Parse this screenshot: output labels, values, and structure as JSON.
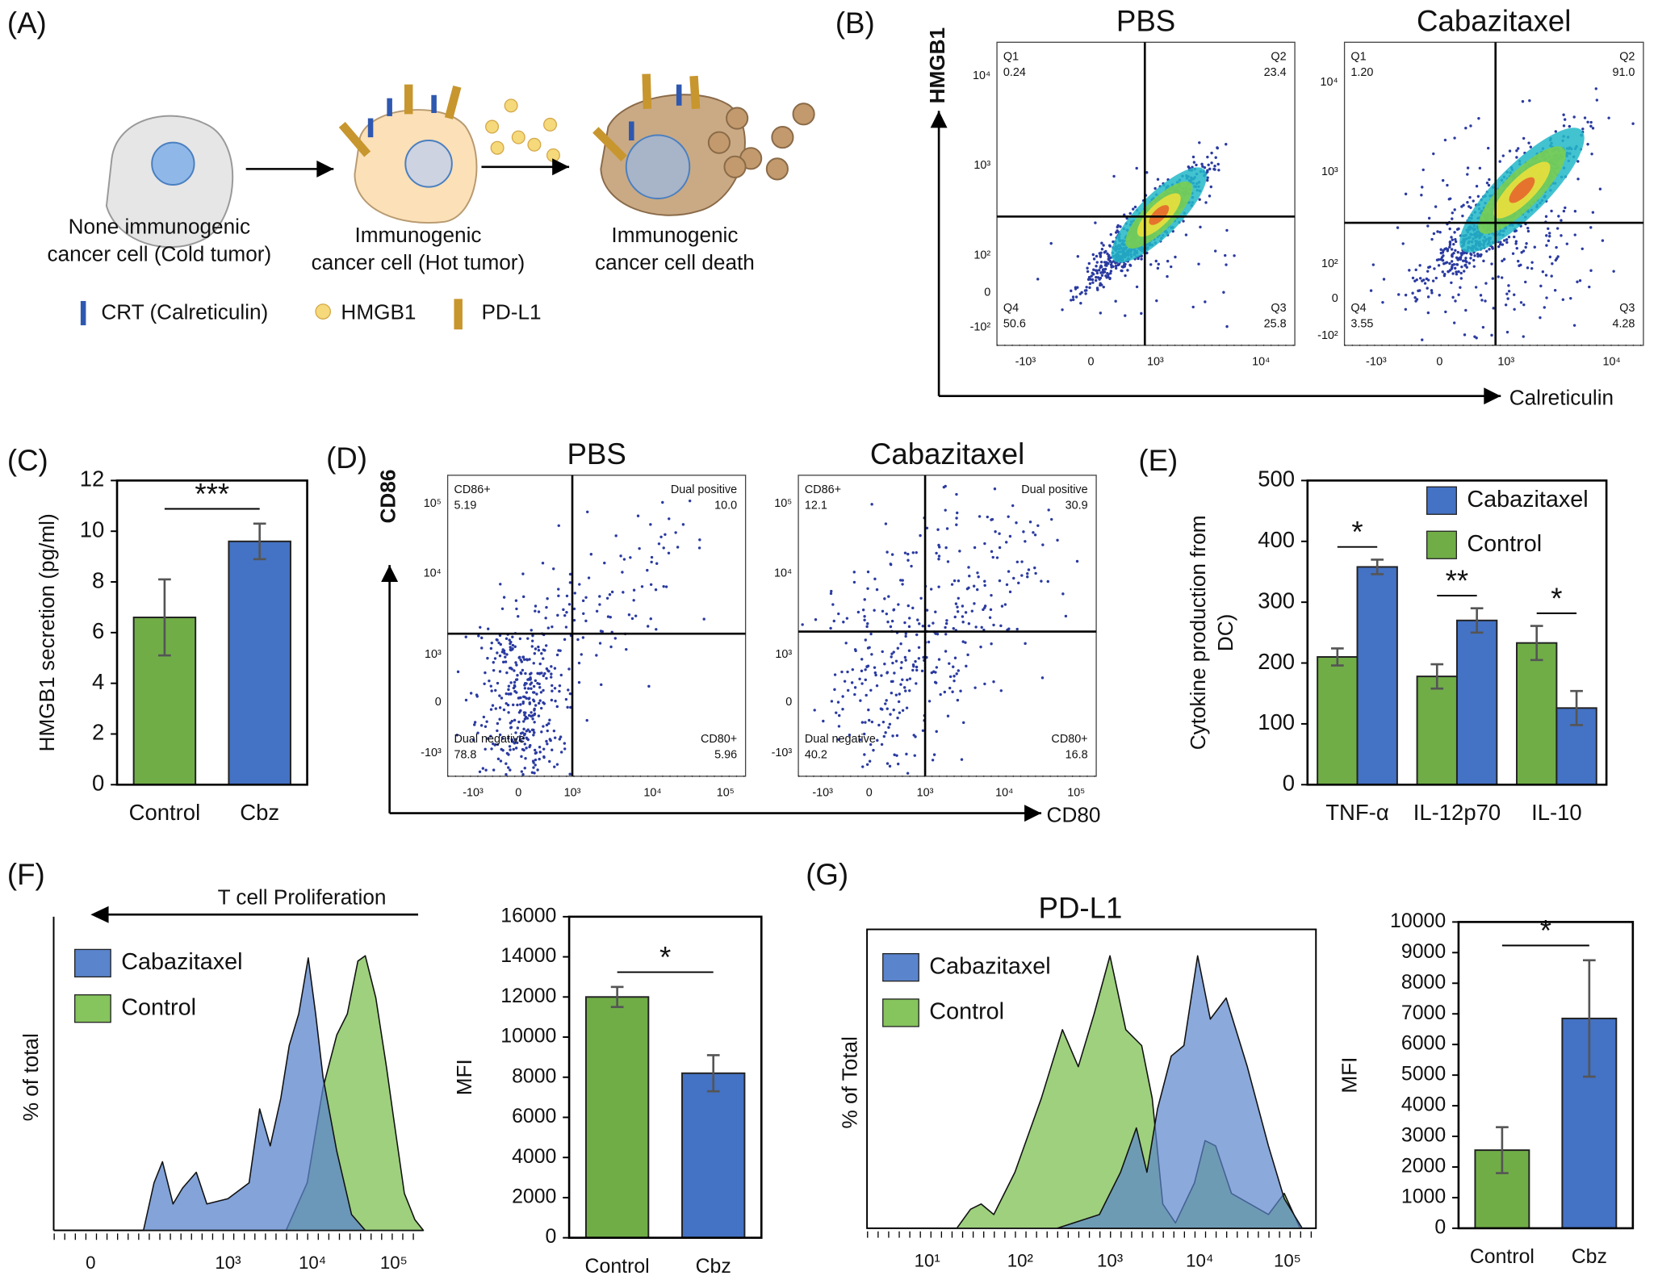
{
  "diagram": {
    "label": "(A)",
    "cells": [
      [
        "None immunogenic",
        "cancer cell (Cold tumor)"
      ],
      [
        "Immunogenic",
        "cancer cell (Hot tumor)"
      ],
      [
        "Immunogenic",
        "cancer cell death"
      ]
    ],
    "legend": [
      "CRT (Calreticulin)",
      "HMGB1",
      "PD-L1"
    ]
  },
  "flow_B": {
    "label": "(B)",
    "y_label": "HMGB1",
    "x_label": "Calreticulin",
    "x_ticks": [
      "-10³",
      "0",
      "10³",
      "10⁴"
    ],
    "y_ticks": [
      "10⁴",
      "10³",
      "10²",
      "0",
      "-10²"
    ],
    "plots": [
      {
        "title": "PBS",
        "gates": [
          {
            "name": "Q1",
            "value": "0.24"
          },
          {
            "name": "Q2",
            "value": "23.4"
          },
          {
            "name": "Q4",
            "value": "50.6"
          },
          {
            "name": "Q3",
            "value": "25.8"
          }
        ]
      },
      {
        "title": "Cabazitaxel",
        "gates": [
          {
            "name": "Q1",
            "value": "1.20"
          },
          {
            "name": "Q2",
            "value": "91.0"
          },
          {
            "name": "Q4",
            "value": "3.55"
          },
          {
            "name": "Q3",
            "value": "4.28"
          }
        ]
      }
    ]
  },
  "flow_D": {
    "label": "(D)",
    "y_label": "CD86",
    "x_label": "CD80",
    "x_ticks": [
      "-10³",
      "0",
      "10³",
      "10⁴",
      "10⁵"
    ],
    "y_ticks": [
      "10⁵",
      "10⁴",
      "10³",
      "0",
      "-10³"
    ],
    "plots": [
      {
        "title": "PBS",
        "gates": [
          {
            "name": "CD86+",
            "value": "5.19"
          },
          {
            "name": "Dual positive",
            "value": "10.0"
          },
          {
            "name": "Dual negative",
            "value": "78.8"
          },
          {
            "name": "CD80+",
            "value": "5.96"
          }
        ]
      },
      {
        "title": "Cabazitaxel",
        "gates": [
          {
            "name": "CD86+",
            "value": "12.1"
          },
          {
            "name": "Dual positive",
            "value": "30.9"
          },
          {
            "name": "Dual negative",
            "value": "40.2"
          },
          {
            "name": "CD80+",
            "value": "16.8"
          }
        ]
      }
    ]
  },
  "hist_F": {
    "label": "(F)",
    "arrow_label": "T cell Proliferation",
    "y_label": "% of total",
    "legend": [
      "Cabazitaxel",
      "Control"
    ],
    "x_ticks": [
      "0",
      "10³",
      "10⁴",
      "10⁵"
    ]
  },
  "hist_G": {
    "label": "(G)",
    "title": "PD-L1",
    "y_label": "% of Total",
    "legend": [
      "Cabazitaxel",
      "Control"
    ],
    "x_ticks": [
      "10¹",
      "10²",
      "10³",
      "10⁴",
      "10⁵"
    ]
  },
  "chart_data": [
    {
      "type": "bar",
      "label": "(C)",
      "y_label": "HMGB1 secretion (pg/ml)",
      "categories": [
        "Control",
        "Cbz"
      ],
      "values": [
        6.6,
        9.6
      ],
      "errors": [
        1.5,
        0.7
      ],
      "colors": [
        "#70ad47",
        "#4472c4"
      ],
      "ylim": [
        0,
        12
      ],
      "yticks": [
        0,
        2,
        4,
        6,
        8,
        10,
        12
      ],
      "annotation": "***"
    },
    {
      "type": "grouped-bar",
      "label": "(E)",
      "y_label": [
        "Cytokine production from",
        "DC)"
      ],
      "categories": [
        "TNF-α",
        "IL-12p70",
        "IL-10"
      ],
      "series": [
        {
          "name": "Control",
          "color": "#70ad47",
          "values": [
            210,
            178,
            233
          ],
          "errors": [
            14,
            20,
            28
          ]
        },
        {
          "name": "Cabazitaxel",
          "color": "#4472c4",
          "values": [
            358,
            270,
            126
          ],
          "errors": [
            12,
            20,
            28
          ]
        }
      ],
      "ylim": [
        0,
        500
      ],
      "yticks": [
        0,
        100,
        200,
        300,
        400,
        500
      ],
      "annotations": [
        "*",
        "**",
        "*"
      ]
    },
    {
      "type": "bar",
      "y_label": "MFI",
      "categories": [
        "Control",
        "Cbz"
      ],
      "values": [
        12000,
        8200
      ],
      "errors": [
        500,
        900
      ],
      "colors": [
        "#70ad47",
        "#4472c4"
      ],
      "ylim": [
        0,
        16000
      ],
      "yticks": [
        0,
        2000,
        4000,
        6000,
        8000,
        10000,
        12000,
        14000,
        16000
      ],
      "annotation": "*"
    },
    {
      "type": "bar",
      "y_label": "MFI",
      "categories": [
        "Control",
        "Cbz"
      ],
      "values": [
        2550,
        6850
      ],
      "errors": [
        750,
        1900
      ],
      "colors": [
        "#70ad47",
        "#4472c4"
      ],
      "ylim": [
        0,
        10000
      ],
      "yticks": [
        0,
        1000,
        2000,
        3000,
        4000,
        5000,
        6000,
        7000,
        8000,
        9000,
        10000
      ],
      "annotation": "*"
    }
  ]
}
